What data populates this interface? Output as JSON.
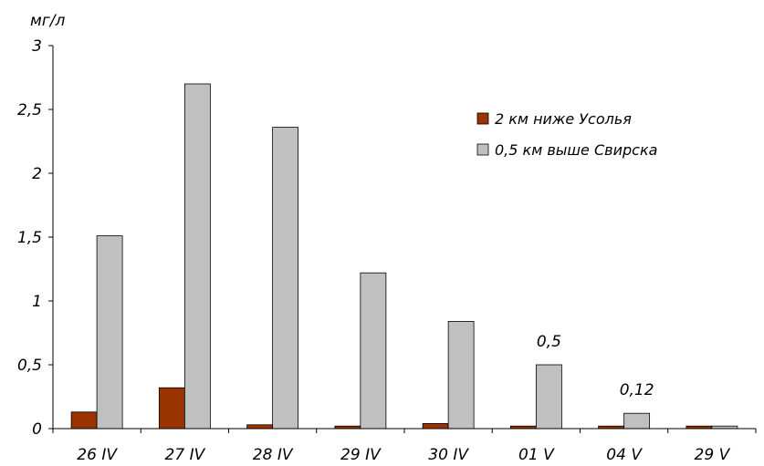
{
  "chart_data": {
    "type": "bar",
    "ylabel": "мг/л",
    "ylim": [
      0,
      3
    ],
    "yticks": [
      0,
      0.5,
      1,
      1.5,
      2,
      2.5,
      3
    ],
    "ytick_labels": [
      "0",
      "0,5",
      "1",
      "1,5",
      "2",
      "2,5",
      "3"
    ],
    "categories": [
      "26 IV",
      "27 IV",
      "28 IV",
      "29 IV",
      "30 IV",
      "01 V",
      "04 V",
      "29 V"
    ],
    "series": [
      {
        "name": "2 км ниже Усолья",
        "color": "#993300",
        "values": [
          0.13,
          0.32,
          0.03,
          0.02,
          0.04,
          0.02,
          0.02,
          0.02
        ]
      },
      {
        "name": "0,5 км выше Свирска",
        "color": "#c0c0c0",
        "values": [
          1.51,
          2.7,
          2.36,
          1.22,
          0.84,
          0.5,
          0.12,
          0.02
        ]
      }
    ],
    "annotations": [
      {
        "category": "01 V",
        "series": 1,
        "text": "0,5"
      },
      {
        "category": "04 V",
        "series": 1,
        "text": "0,12"
      }
    ],
    "grid": false,
    "legend_position": "top-right"
  }
}
